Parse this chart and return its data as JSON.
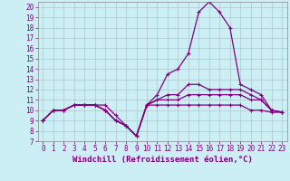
{
  "xlabel": "Windchill (Refroidissement éolien,°C)",
  "bg_color": "#cceef5",
  "line_color": "#800080",
  "grid_color": "#b0c8cc",
  "xlim": [
    -0.5,
    23.5
  ],
  "ylim": [
    7,
    20.5
  ],
  "yticks": [
    7,
    8,
    9,
    10,
    11,
    12,
    13,
    14,
    15,
    16,
    17,
    18,
    19,
    20
  ],
  "xticks": [
    0,
    1,
    2,
    3,
    4,
    5,
    6,
    7,
    8,
    9,
    10,
    11,
    12,
    13,
    14,
    15,
    16,
    17,
    18,
    19,
    20,
    21,
    22,
    23
  ],
  "series": [
    [
      9,
      10,
      10,
      10.5,
      10.5,
      10.5,
      10.5,
      9.5,
      8.5,
      7.5,
      10.5,
      11.5,
      13.5,
      14,
      15.5,
      19.5,
      20.5,
      19.5,
      18,
      12.5,
      12,
      11.5,
      10,
      9.8
    ],
    [
      9,
      10,
      10,
      10.5,
      10.5,
      10.5,
      10,
      9,
      8.5,
      7.5,
      10.5,
      11,
      11.5,
      11.5,
      12.5,
      12.5,
      12,
      12,
      12,
      12,
      11.5,
      11,
      10,
      9.8
    ],
    [
      9,
      10,
      10,
      10.5,
      10.5,
      10.5,
      10,
      9,
      8.5,
      7.5,
      10.5,
      11,
      11,
      11,
      11.5,
      11.5,
      11.5,
      11.5,
      11.5,
      11.5,
      11,
      11,
      10,
      9.8
    ],
    [
      9,
      10,
      10,
      10.5,
      10.5,
      10.5,
      10,
      9,
      8.5,
      7.5,
      10.5,
      10.5,
      10.5,
      10.5,
      10.5,
      10.5,
      10.5,
      10.5,
      10.5,
      10.5,
      10,
      10,
      9.8,
      9.8
    ]
  ],
  "marker": "+",
  "markersize": 3,
  "linewidth": 0.9,
  "tick_fontsize": 5.5,
  "xlabel_fontsize": 6.5
}
